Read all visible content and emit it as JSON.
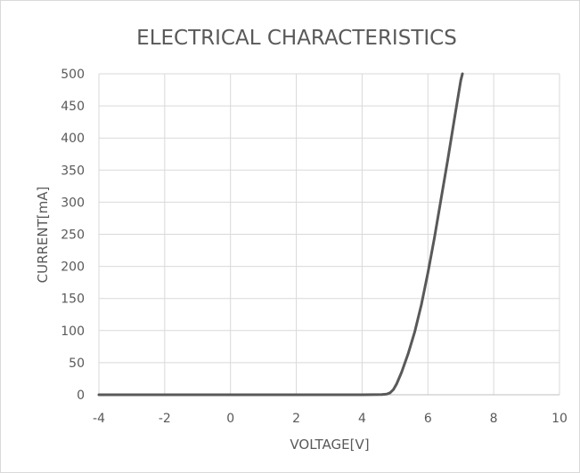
{
  "chart_data": {
    "type": "line",
    "title": "ELECTRICAL CHARACTERISTICS",
    "xlabel": "VOLTAGE[V]",
    "ylabel": "CURRENT[mA]",
    "xlim": [
      -4,
      10
    ],
    "ylim": [
      0,
      500
    ],
    "xticks": [
      "-4",
      "-2",
      "0",
      "2",
      "4",
      "6",
      "8",
      "10"
    ],
    "yticks": [
      "0",
      "50",
      "100",
      "150",
      "200",
      "250",
      "300",
      "350",
      "400",
      "450",
      "500"
    ],
    "grid": true,
    "legend": "none",
    "series": [
      {
        "color": "#595959",
        "x": [
          -4,
          0,
          4,
          4.6,
          4.75,
          4.85,
          4.95,
          5.05,
          5.2,
          5.4,
          5.6,
          5.8,
          6.0,
          6.2,
          6.4,
          6.6,
          6.8,
          7.0,
          7.05
        ],
        "y": [
          0,
          0,
          0,
          0.3,
          1,
          3,
          8,
          17,
          35,
          64,
          98,
          140,
          190,
          245,
          305,
          365,
          428,
          490,
          500
        ]
      }
    ]
  }
}
